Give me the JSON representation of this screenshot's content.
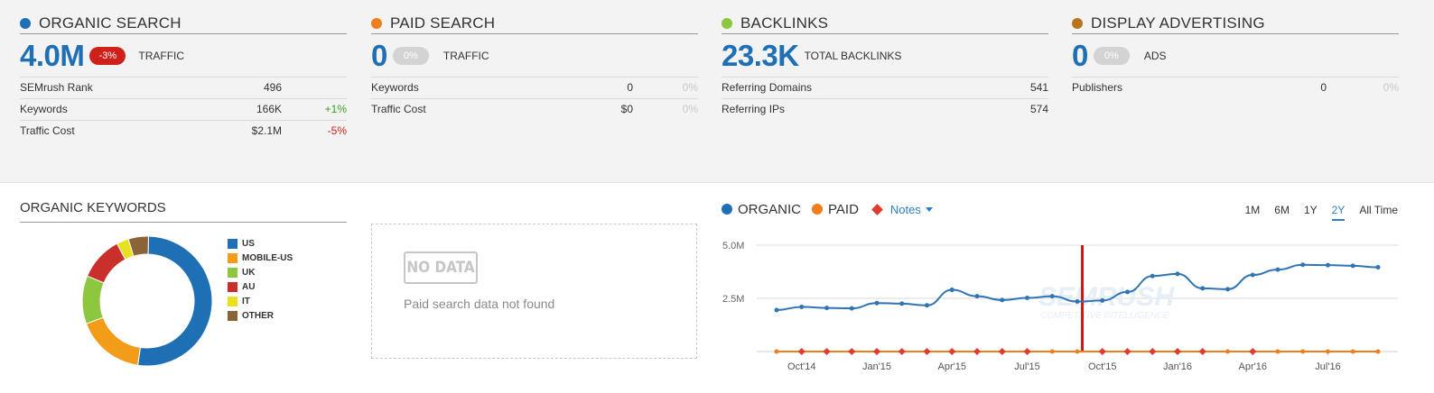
{
  "panels": {
    "organic": {
      "title": "ORGANIC SEARCH",
      "color": "#1f6fb5",
      "value": "4.0M",
      "badge": "-3%",
      "label": "TRAFFIC",
      "rows": [
        {
          "label": "SEMrush Rank",
          "value": "496",
          "change": ""
        },
        {
          "label": "Keywords",
          "value": "166K",
          "change": "+1%"
        },
        {
          "label": "Traffic Cost",
          "value": "$2.1M",
          "change": "-5%"
        }
      ]
    },
    "paid": {
      "title": "PAID SEARCH",
      "color": "#f07d1e",
      "value": "0",
      "badge": "0%",
      "label": "TRAFFIC",
      "rows": [
        {
          "label": "Keywords",
          "value": "0",
          "change": "0%"
        },
        {
          "label": "Traffic Cost",
          "value": "$0",
          "change": "0%"
        }
      ]
    },
    "backlinks": {
      "title": "BACKLINKS",
      "color": "#8dc63f",
      "value": "23.3K",
      "label": "TOTAL BACKLINKS",
      "rows": [
        {
          "label": "Referring Domains",
          "value": "541"
        },
        {
          "label": "Referring IPs",
          "value": "574"
        }
      ]
    },
    "display": {
      "title": "DISPLAY ADVERTISING",
      "color": "#b8761c",
      "value": "0",
      "badge": "0%",
      "label": "ADS",
      "rows": [
        {
          "label": "Publishers",
          "value": "0",
          "change": "0%"
        }
      ]
    }
  },
  "organic_keywords": {
    "title": "ORGANIC KEYWORDS",
    "legend": [
      {
        "label": "US",
        "color": "#1f6fb5"
      },
      {
        "label": "MOBILE-US",
        "color": "#f39c1a"
      },
      {
        "label": "UK",
        "color": "#8dc63f"
      },
      {
        "label": "AU",
        "color": "#c9302c"
      },
      {
        "label": "IT",
        "color": "#e7e121"
      },
      {
        "label": "OTHER",
        "color": "#8b6338"
      }
    ]
  },
  "paid_nodata": {
    "badge": "NO DATA",
    "message": "Paid search data not found"
  },
  "chart_header": {
    "organic": "ORGANIC",
    "paid": "PAID",
    "notes": "Notes",
    "ranges": [
      "1M",
      "6M",
      "1Y",
      "2Y",
      "All Time"
    ],
    "active_range": "2Y"
  },
  "chart_data": [
    {
      "type": "pie",
      "categories": [
        "US",
        "MOBILE-US",
        "UK",
        "AU",
        "IT",
        "OTHER"
      ],
      "values": [
        52,
        17,
        12,
        11,
        3,
        5
      ],
      "colors": [
        "#1f6fb5",
        "#f39c1a",
        "#8dc63f",
        "#c9302c",
        "#e7e121",
        "#8b6338"
      ]
    },
    {
      "type": "line",
      "watermark": "SEMRUSH",
      "watermark_sub": "COMPETITIVE INTELLIGENCE",
      "ytick_labels": [
        "5.0M",
        "2.5M"
      ],
      "yticks": [
        5000000,
        2500000
      ],
      "ylim": [
        0,
        5000000
      ],
      "xtick_labels": [
        "Oct'14",
        "Jan'15",
        "Apr'15",
        "Jul'15",
        "Oct'15",
        "Jan'16",
        "Apr'16",
        "Jul'16"
      ],
      "xticks": [
        1,
        4,
        7,
        10,
        13,
        16,
        19,
        22
      ],
      "x": [
        0,
        1,
        2,
        3,
        4,
        5,
        6,
        7,
        8,
        9,
        10,
        11,
        12,
        13,
        14,
        15,
        16,
        17,
        18,
        19,
        20,
        21,
        22,
        23,
        24
      ],
      "xlim": [
        0,
        24
      ],
      "series": [
        {
          "name": "ORGANIC",
          "color": "#2f74b5",
          "values": [
            1950000,
            2100000,
            2050000,
            2030000,
            2280000,
            2250000,
            2170000,
            2900000,
            2600000,
            2420000,
            2520000,
            2600000,
            2350000,
            2400000,
            2800000,
            3550000,
            3650000,
            2970000,
            2930000,
            3600000,
            3850000,
            4080000,
            4060000,
            4030000,
            3960000
          ]
        },
        {
          "name": "PAID",
          "color": "#f07d1e",
          "values": [
            0,
            0,
            0,
            0,
            0,
            0,
            0,
            0,
            0,
            0,
            0,
            0,
            0,
            0,
            0,
            0,
            0,
            0,
            0,
            0,
            0,
            0,
            0,
            0,
            0
          ]
        }
      ],
      "notes_x": [
        1,
        2,
        3,
        4,
        5,
        6,
        7,
        8,
        9,
        10,
        13,
        14,
        15,
        16,
        17,
        19
      ],
      "event_line_x": 12.2
    }
  ]
}
